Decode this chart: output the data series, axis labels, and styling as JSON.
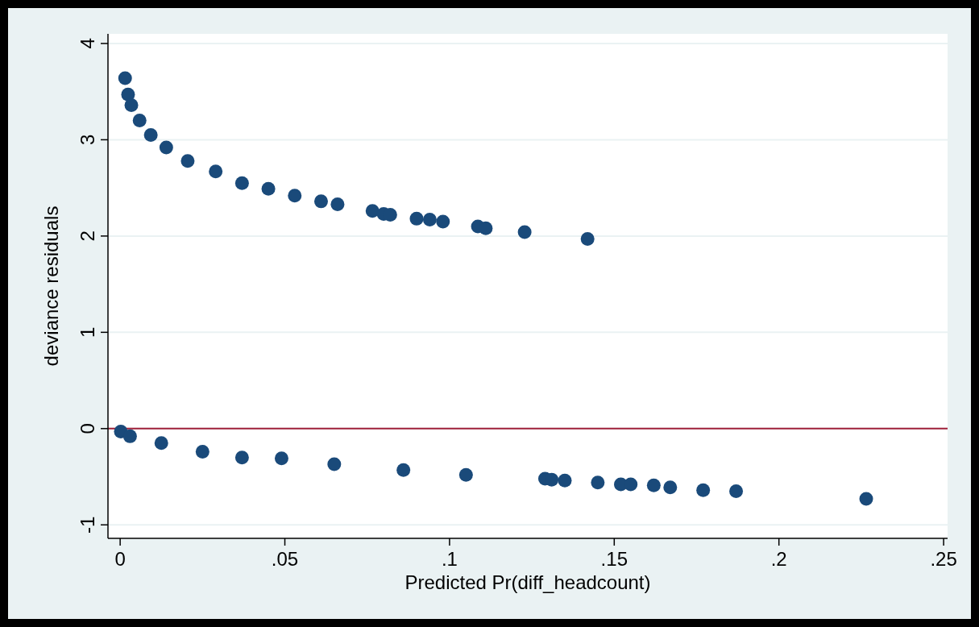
{
  "chart_data": {
    "type": "scatter",
    "xlabel": "Predicted Pr(diff_headcount)",
    "ylabel": "deviance residuals",
    "xlim": [
      -0.0037,
      0.2512
    ],
    "ylim": [
      -1.14,
      4.1
    ],
    "xticks": [
      {
        "value": 0,
        "label": "0"
      },
      {
        "value": 0.05,
        "label": ".05"
      },
      {
        "value": 0.1,
        "label": ".1"
      },
      {
        "value": 0.15,
        "label": ".15"
      },
      {
        "value": 0.2,
        "label": ".2"
      },
      {
        "value": 0.25,
        "label": ".25"
      }
    ],
    "yticks": [
      -1,
      0,
      1,
      2,
      3,
      4
    ],
    "grid": "y",
    "marker": "circle",
    "ref_lines": [
      {
        "axis": "y",
        "value": 0,
        "color": "#a0203a"
      }
    ],
    "series": [
      {
        "color": "#1a4a7a",
        "x": [
          0.0015,
          0.0024,
          0.0034,
          0.0059,
          0.0093,
          0.014,
          0.0205,
          0.029,
          0.037,
          0.045,
          0.053,
          0.061,
          0.066,
          0.0766,
          0.08,
          0.082,
          0.09,
          0.094,
          0.098,
          0.1086,
          0.111,
          0.1228,
          0.1419,
          0.0002,
          0.003,
          0.0125,
          0.025,
          0.037,
          0.049,
          0.065,
          0.086,
          0.105,
          0.129,
          0.131,
          0.135,
          0.145,
          0.152,
          0.155,
          0.162,
          0.167,
          0.177,
          0.187,
          0.2265
        ],
        "values": [
          3.64,
          3.47,
          3.36,
          3.2,
          3.05,
          2.92,
          2.78,
          2.67,
          2.55,
          2.49,
          2.42,
          2.36,
          2.33,
          2.26,
          2.23,
          2.22,
          2.18,
          2.17,
          2.15,
          2.1,
          2.08,
          2.04,
          1.97,
          -0.03,
          -0.08,
          -0.15,
          -0.24,
          -0.3,
          -0.31,
          -0.37,
          -0.43,
          -0.48,
          -0.52,
          -0.53,
          -0.54,
          -0.56,
          -0.58,
          -0.58,
          -0.59,
          -0.61,
          -0.64,
          -0.65,
          -0.73
        ]
      }
    ]
  }
}
